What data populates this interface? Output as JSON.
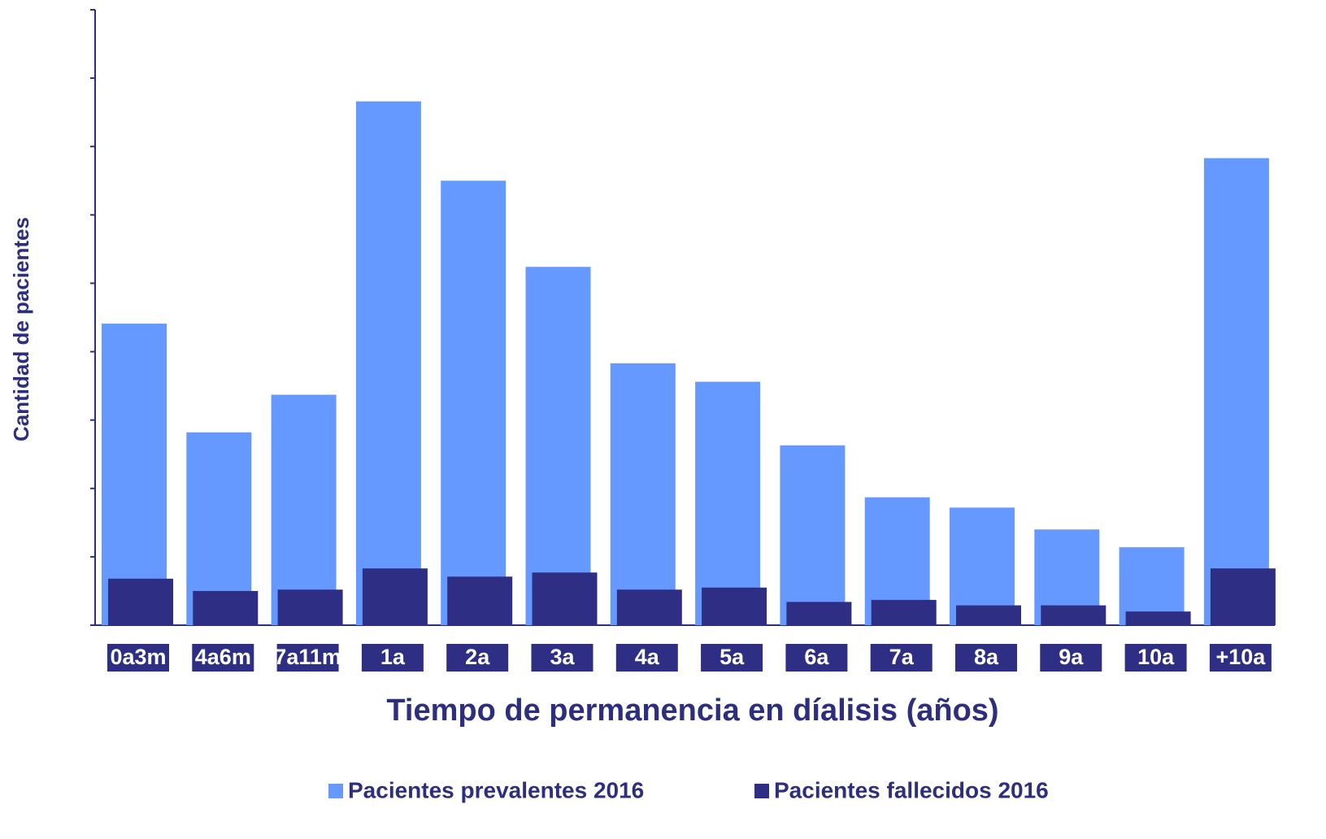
{
  "chart_data": {
    "type": "bar",
    "x_label": "Tiempo de permanencia en díalisis (años)",
    "y_label": "Cantidad de pacientes",
    "categories": [
      "0a3m",
      "4a6m",
      "7a11m",
      "1a",
      "2a",
      "3a",
      "4a",
      "5a",
      "6a",
      "7a",
      "8a",
      "9a",
      "10a",
      "+10a"
    ],
    "series": [
      {
        "name": "Pacientes prevalentes 2016",
        "color": "#6699ff",
        "values": [
          4.41,
          2.82,
          3.37,
          7.66,
          6.5,
          5.24,
          3.83,
          3.56,
          2.63,
          1.87,
          1.72,
          1.4,
          1.14,
          6.83
        ]
      },
      {
        "name": "Pacientes fallecidos 2016",
        "color": "#2e2e85",
        "values": [
          0.68,
          0.5,
          0.52,
          0.83,
          0.71,
          0.77,
          0.52,
          0.55,
          0.34,
          0.37,
          0.29,
          0.29,
          0.2,
          0.83
        ]
      }
    ],
    "ylim": [
      0,
      9
    ],
    "yticks": [
      0,
      1,
      2,
      3,
      4,
      5,
      6,
      7,
      8,
      9
    ],
    "grid": false,
    "legend": "bottom"
  }
}
